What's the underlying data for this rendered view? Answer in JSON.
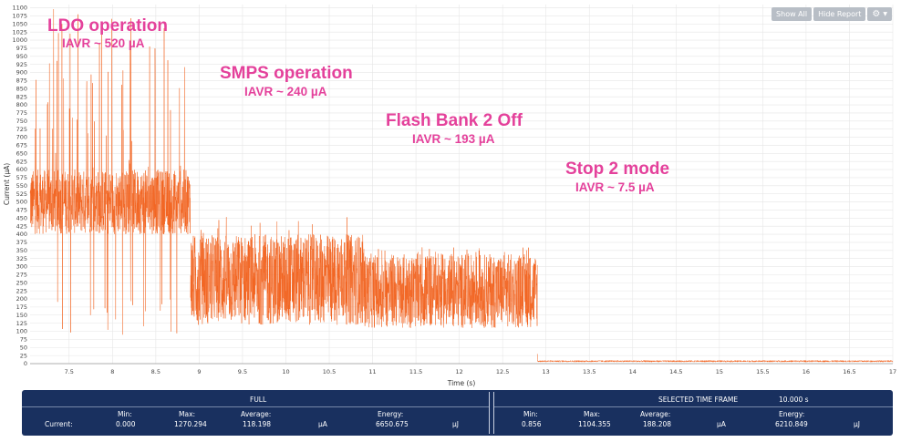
{
  "toolbar": {
    "show_all_label": "Show All",
    "hide_report_label": "Hide Report",
    "settings_icon": "gear-icon",
    "dropdown_icon": "caret-down-icon"
  },
  "chart_data": {
    "type": "line",
    "title": "",
    "xlabel": "Time (s)",
    "ylabel": "Current (µA)",
    "xlim": [
      7.05,
      17
    ],
    "ylim": [
      0,
      1110
    ],
    "x_ticks": [
      "7.5",
      "8",
      "8.5",
      "9",
      "9.5",
      "10",
      "10.5",
      "11",
      "11.5",
      "12",
      "12.5",
      "13",
      "13.5",
      "14",
      "14.5",
      "15",
      "15.5",
      "16",
      "16.5",
      "17"
    ],
    "y_ticks": [
      "0",
      "25",
      "50",
      "75",
      "100",
      "125",
      "150",
      "175",
      "200",
      "225",
      "250",
      "275",
      "300",
      "325",
      "350",
      "375",
      "400",
      "425",
      "450",
      "475",
      "500",
      "525",
      "550",
      "575",
      "600",
      "625",
      "650",
      "675",
      "700",
      "725",
      "750",
      "775",
      "800",
      "825",
      "850",
      "875",
      "900",
      "925",
      "950",
      "975",
      "1000",
      "1025",
      "1050",
      "1075",
      "1100"
    ],
    "grid": true,
    "series_color": "#f26522",
    "segments": [
      {
        "label": "LDO operation",
        "t_start": 7.05,
        "t_end": 8.9,
        "base_low": 400,
        "base_high": 600,
        "avg": 520,
        "peak": 1100,
        "dip": 80
      },
      {
        "label": "SMPS operation",
        "t_start": 8.9,
        "t_end": 10.9,
        "base_low": 120,
        "base_high": 400,
        "avg": 240,
        "peak": 460,
        "dip": 110
      },
      {
        "label": "Flash Bank 2 Off",
        "t_start": 10.9,
        "t_end": 12.9,
        "base_low": 110,
        "base_high": 340,
        "avg": 193,
        "peak": 360,
        "dip": 100
      },
      {
        "label": "Stop 2 mode",
        "t_start": 12.9,
        "t_end": 17,
        "base_low": 5,
        "base_high": 10,
        "avg": 7.5,
        "peak": 12,
        "dip": 3
      }
    ],
    "annotations": [
      {
        "title": "LDO operation",
        "sub": "IAVR ~ 520 µA"
      },
      {
        "title": "SMPS operation",
        "sub": "IAVR ~ 240 µA"
      },
      {
        "title": "Flash Bank 2 Off",
        "sub": "IAVR ~ 193 µA"
      },
      {
        "title": "Stop 2 mode",
        "sub": "IAVR ~ 7.5 µA"
      }
    ]
  },
  "report": {
    "full_label": "FULL",
    "selected_label": "SELECTED TIME FRAME",
    "selected_duration": "10.000 s",
    "row_label": "Current:",
    "min_label": "Min:",
    "max_label": "Max:",
    "avg_label": "Average:",
    "energy_label": "Energy:",
    "unit_current": "µA",
    "unit_energy": "µJ",
    "full": {
      "min": "0.000",
      "max": "1270.294",
      "average": "118.198",
      "energy": "6650.675"
    },
    "selected": {
      "min": "0.856",
      "max": "1104.355",
      "average": "188.208",
      "energy": "6210.849"
    }
  }
}
